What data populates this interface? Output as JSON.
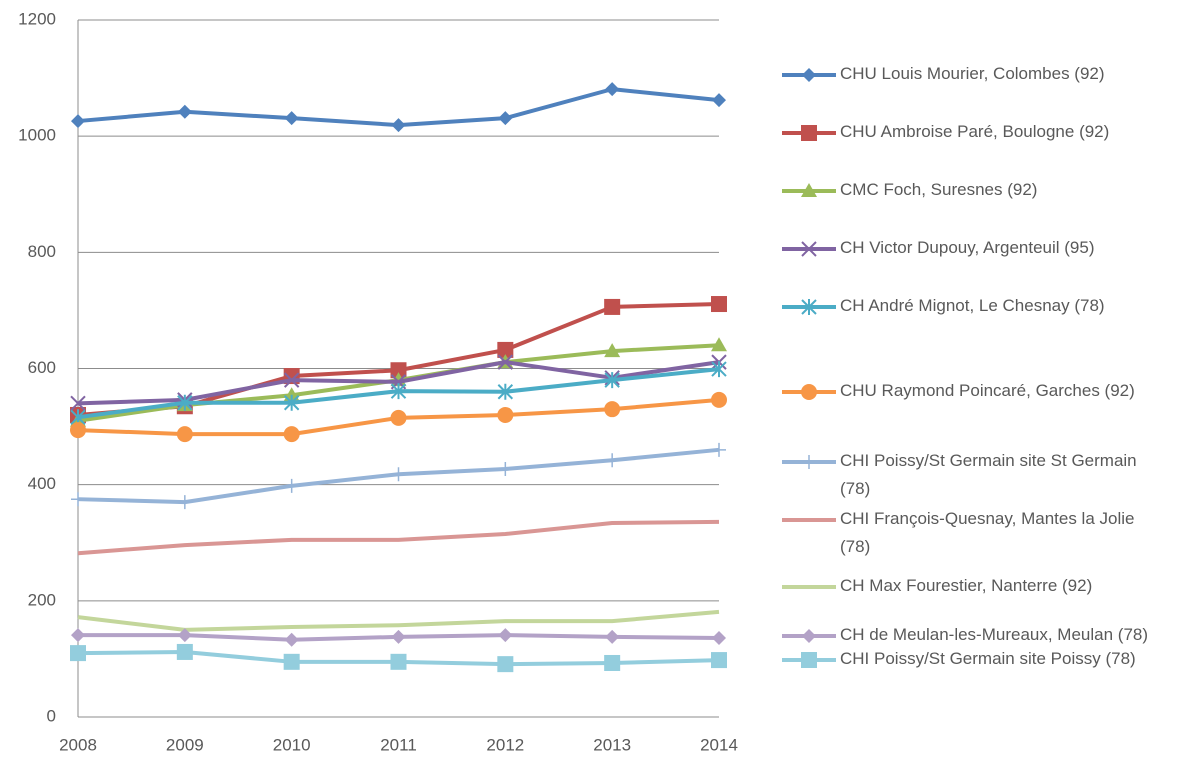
{
  "chart_data": {
    "type": "line",
    "categories": [
      "2008",
      "2009",
      "2010",
      "2011",
      "2012",
      "2013",
      "2014"
    ],
    "ylim": [
      0,
      1200
    ],
    "yticks": [
      0,
      200,
      400,
      600,
      800,
      1000,
      1200
    ],
    "grid": true,
    "legend": "right",
    "series": [
      {
        "name": "CHU Louis Mourier, Colombes (92)",
        "color": "#4f81bd",
        "marker": "diamond",
        "values": [
          1026,
          1042,
          1031,
          1019,
          1031,
          1081,
          1062
        ]
      },
      {
        "name": "CHU Ambroise Paré, Boulogne (92)",
        "color": "#c0504d",
        "marker": "square",
        "values": [
          520,
          535,
          587,
          597,
          632,
          706,
          711
        ]
      },
      {
        "name": "CMC Foch, Suresnes (92)",
        "color": "#9bbb59",
        "marker": "triangle",
        "values": [
          510,
          537,
          554,
          580,
          611,
          630,
          640
        ]
      },
      {
        "name": "CH Victor Dupouy, Argenteuil (95)",
        "color": "#8064a2",
        "marker": "x",
        "values": [
          540,
          546,
          580,
          577,
          611,
          584,
          611
        ]
      },
      {
        "name": "CH André Mignot, Le Chesnay (78)",
        "color": "#4bacc6",
        "marker": "star",
        "values": [
          516,
          541,
          541,
          561,
          560,
          580,
          599
        ]
      },
      {
        "name": "CHU Raymond Poincaré, Garches (92)",
        "color": "#f79646",
        "marker": "circle",
        "values": [
          494,
          487,
          487,
          515,
          520,
          530,
          546
        ]
      },
      {
        "name": "CHI Poissy/St Germain site St Germain (78)",
        "color": "#95b3d7",
        "marker": "plus",
        "values": [
          375,
          370,
          398,
          418,
          427,
          442,
          460
        ]
      },
      {
        "name": "CHI François-Quesnay, Mantes la Jolie (78)",
        "color": "#d99694",
        "marker": "none",
        "values": [
          282,
          296,
          305,
          305,
          315,
          334,
          336
        ]
      },
      {
        "name": "CH Max Fourestier, Nanterre (92)",
        "color": "#c3d69b",
        "marker": "none",
        "values": [
          172,
          150,
          155,
          158,
          165,
          165,
          181
        ]
      },
      {
        "name": "CH de Meulan-les-Mureaux, Meulan (78)",
        "color": "#b3a2c7",
        "marker": "diamond",
        "values": [
          141,
          141,
          133,
          138,
          141,
          138,
          136
        ]
      },
      {
        "name": "CHI Poissy/St Germain site Poissy (78)",
        "color": "#93cddd",
        "marker": "square",
        "values": [
          110,
          112,
          95,
          95,
          91,
          93,
          98
        ]
      }
    ]
  }
}
